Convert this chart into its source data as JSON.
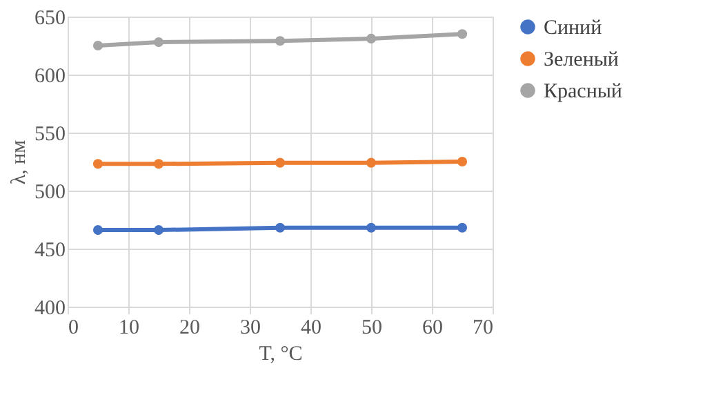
{
  "chart_data": {
    "type": "line",
    "xlabel": "T, °C",
    "ylabel": "λ, нм",
    "x": [
      5,
      15,
      35,
      50,
      65
    ],
    "series": [
      {
        "name": "Синий",
        "color": "#4472c4",
        "values": [
          466,
          466,
          468,
          468,
          468
        ]
      },
      {
        "name": "Зеленый",
        "color": "#ed7d31",
        "values": [
          523,
          523,
          524,
          524,
          525
        ]
      },
      {
        "name": "Красный",
        "color": "#a5a5a5",
        "values": [
          625,
          628,
          629,
          631,
          635
        ]
      }
    ],
    "xlim": [
      0,
      70
    ],
    "xticks": [
      0,
      10,
      20,
      30,
      40,
      50,
      60,
      70
    ],
    "ylim": [
      400,
      650
    ],
    "yticks": [
      400,
      450,
      500,
      550,
      600,
      650
    ],
    "grid": true,
    "legend": "right",
    "marker": "circle",
    "line_style": "solid"
  }
}
